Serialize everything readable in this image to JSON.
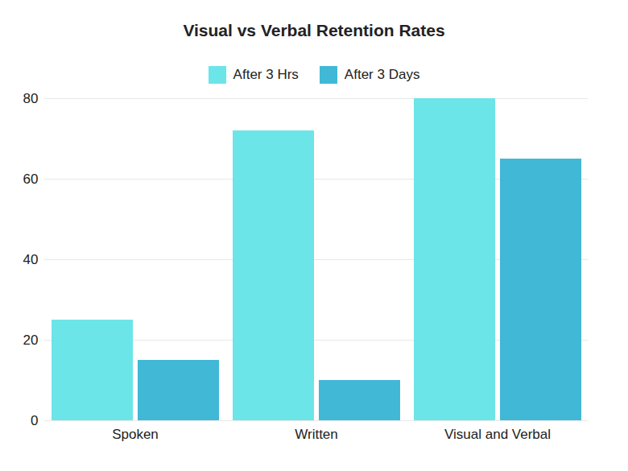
{
  "chart_data": {
    "type": "bar",
    "title": "Visual vs Verbal Retention Rates",
    "categories": [
      "Spoken",
      "Written",
      "Visual and Verbal"
    ],
    "series": [
      {
        "name": "After 3 Hrs",
        "color": "#6ce5e8",
        "values": [
          25,
          72,
          80
        ]
      },
      {
        "name": "After 3 Days",
        "color": "#41b8d5",
        "values": [
          15,
          10,
          65
        ]
      }
    ],
    "ylim": [
      0,
      80
    ],
    "yticks": [
      0,
      20,
      40,
      60,
      80
    ],
    "grid": true,
    "legend": "top"
  }
}
